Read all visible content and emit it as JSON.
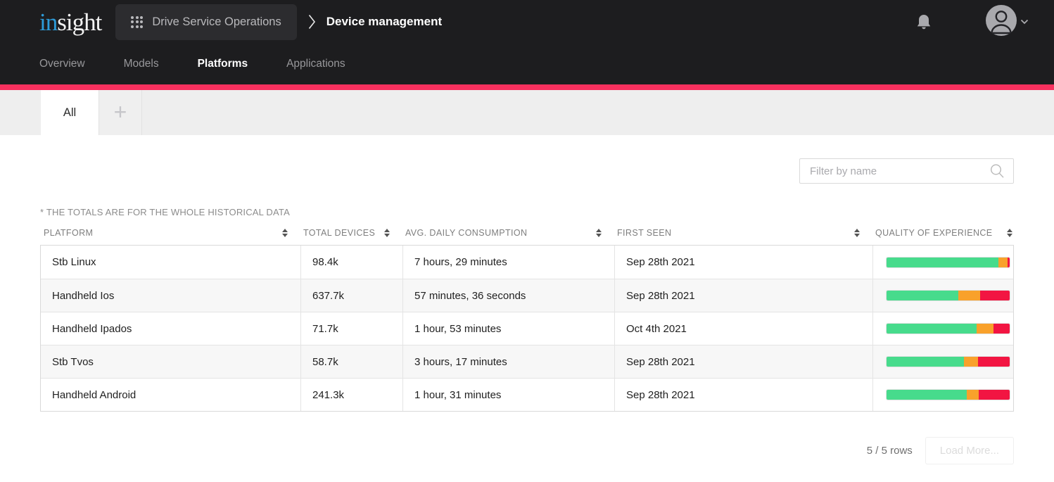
{
  "header": {
    "logo": {
      "part1": "in",
      "part2": "sight"
    },
    "workspace_label": "Drive Service Operations",
    "page_title": "Device management",
    "nav": [
      {
        "label": "Overview",
        "active": false
      },
      {
        "label": "Models",
        "active": false
      },
      {
        "label": "Platforms",
        "active": true
      },
      {
        "label": "Applications",
        "active": false
      }
    ]
  },
  "tabs": {
    "all_label": "All",
    "add_label": "+"
  },
  "filter": {
    "placeholder": "Filter by name",
    "value": ""
  },
  "table": {
    "note": "* THE TOTALS ARE FOR THE WHOLE HISTORICAL DATA",
    "columns": [
      "PLATFORM",
      "TOTAL DEVICES",
      "AVG. DAILY CONSUMPTION",
      "FIRST SEEN",
      "QUALITY OF EXPERIENCE"
    ],
    "rows": [
      {
        "platform": "Stb Linux",
        "total_devices": "98.4k",
        "avg_daily_consumption": "7 hours, 29 minutes",
        "first_seen": "Sep 28th 2021",
        "qoe": {
          "good": 91,
          "fair": 7,
          "bad": 2
        }
      },
      {
        "platform": "Handheld Ios",
        "total_devices": "637.7k",
        "avg_daily_consumption": "57 minutes, 36 seconds",
        "first_seen": "Sep 28th 2021",
        "qoe": {
          "good": 58,
          "fair": 18,
          "bad": 24
        }
      },
      {
        "platform": "Handheld Ipados",
        "total_devices": "71.7k",
        "avg_daily_consumption": "1 hour, 53 minutes",
        "first_seen": "Oct 4th 2021",
        "qoe": {
          "good": 73,
          "fair": 14,
          "bad": 13
        }
      },
      {
        "platform": "Stb Tvos",
        "total_devices": "58.7k",
        "avg_daily_consumption": "3 hours, 17 minutes",
        "first_seen": "Sep 28th 2021",
        "qoe": {
          "good": 63,
          "fair": 11,
          "bad": 26
        }
      },
      {
        "platform": "Handheld Android",
        "total_devices": "241.3k",
        "avg_daily_consumption": "1 hour, 31 minutes",
        "first_seen": "Sep 28th 2021",
        "qoe": {
          "good": 65,
          "fair": 10,
          "bad": 25
        }
      }
    ]
  },
  "footer": {
    "rows_count": "5 / 5 rows",
    "load_more_label": "Load More..."
  },
  "colors": {
    "accent": "#F8305E",
    "logo_blue": "#2D9BD8",
    "qoe_good": "#47DB8C",
    "qoe_fair": "#F9A12B",
    "qoe_bad": "#F21542"
  }
}
